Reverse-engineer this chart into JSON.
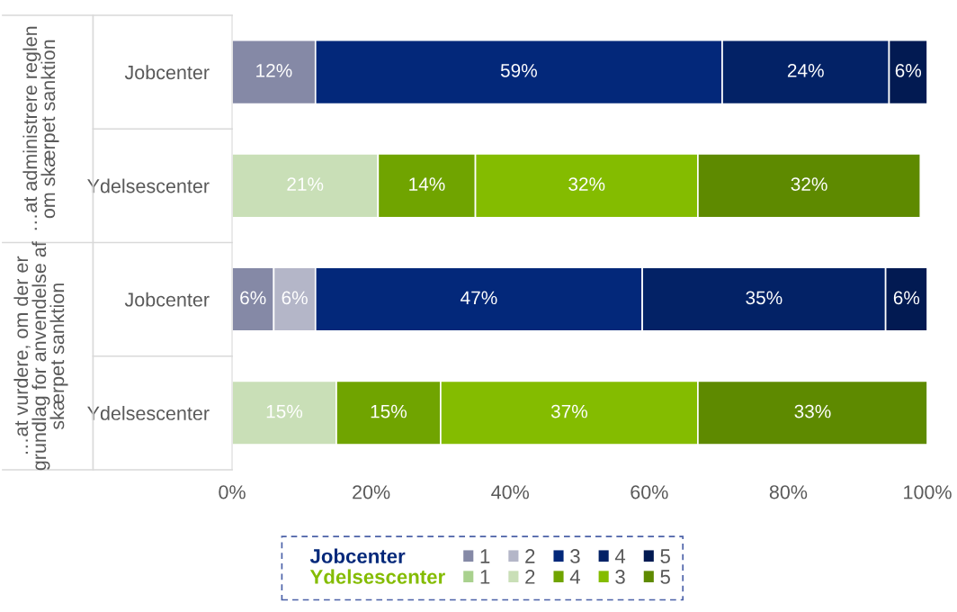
{
  "chart_data": {
    "type": "bar",
    "orientation": "horizontal",
    "stacked": true,
    "categories": [
      "Jobcenter",
      "Ydelsescenter",
      "Jobcenter",
      "Ydelsescenter"
    ],
    "series": [
      {
        "name": "1",
        "color": "#8589a6",
        "values": [
          12,
          null,
          6,
          null
        ],
        "value_labels": [
          "12%",
          null,
          "6%",
          null
        ]
      },
      {
        "name": "2",
        "color": "#b4b6c8",
        "values": [
          null,
          null,
          6,
          null
        ],
        "value_labels": [
          null,
          null,
          "6%",
          null
        ]
      },
      {
        "name": "3",
        "color": "#03287a",
        "values": [
          58.5,
          null,
          47,
          null
        ],
        "value_labels": [
          "59%",
          null,
          "47%",
          null
        ]
      },
      {
        "name": "4",
        "color": "#032266",
        "values": [
          24,
          null,
          35,
          null
        ],
        "value_labels": [
          "24%",
          null,
          "35%",
          null
        ]
      },
      {
        "name": "5",
        "color": "#021a52",
        "values": [
          5.5,
          null,
          6,
          null
        ],
        "value_labels": [
          "6%",
          null,
          "6%",
          null
        ]
      },
      {
        "name": "1",
        "color": "#a9d18e",
        "values": [
          null,
          null,
          null,
          null
        ]
      },
      {
        "name": "2",
        "color": "#c9dfb7",
        "values": [
          null,
          21,
          null,
          15
        ],
        "value_labels": [
          null,
          "21%",
          null,
          "15%"
        ]
      },
      {
        "name": "4",
        "color": "#70a400",
        "values": [
          null,
          14,
          null,
          15
        ],
        "value_labels": [
          null,
          "14%",
          null,
          "15%"
        ]
      },
      {
        "name": "3",
        "color": "#84bc00",
        "values": [
          null,
          32,
          null,
          37
        ],
        "value_labels": [
          null,
          "32%",
          null,
          "37%"
        ]
      },
      {
        "name": "5",
        "color": "#5e8a00",
        "values": [
          null,
          32,
          null,
          33
        ],
        "value_labels": [
          null,
          "32%",
          null,
          "33%"
        ]
      }
    ],
    "xlim": [
      0,
      100
    ],
    "xticks": [
      {
        "value": 0,
        "label": "0%"
      },
      {
        "value": 20,
        "label": "20%"
      },
      {
        "value": 40,
        "label": "40%"
      },
      {
        "value": 60,
        "label": "60%"
      },
      {
        "value": 80,
        "label": "80%"
      },
      {
        "value": 100,
        "label": "100%"
      }
    ],
    "grid": false,
    "legend": "bottom",
    "annotations": [
      "…at administrere reglen\nom skærpet sanktion",
      "…at vurdere, om der er\ngrundlag for anvendelse af\nskærpet sanktion",
      "Jobcenter",
      "Ydelsescenter"
    ]
  }
}
